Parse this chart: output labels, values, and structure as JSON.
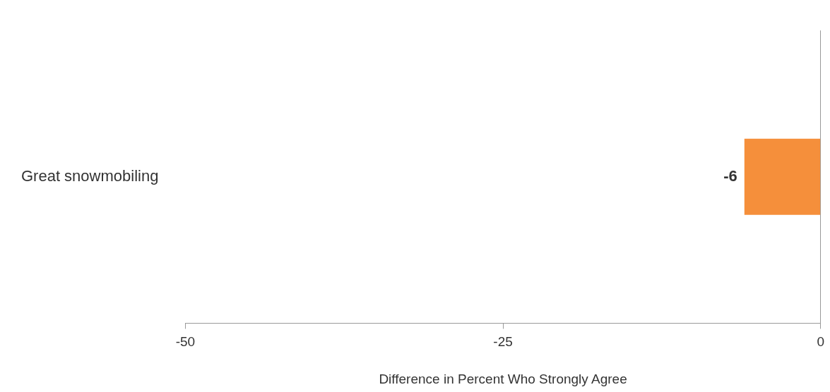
{
  "chart_data": {
    "type": "bar",
    "orientation": "horizontal",
    "xlabel": "Difference in Percent Who Strongly Agree",
    "categories": [
      "Great snowmobiling"
    ],
    "values": [
      -6
    ],
    "color": "#f58f3b",
    "xlim": [
      -50,
      0
    ],
    "xticks": [
      -50,
      -25,
      0
    ],
    "data_labels": true,
    "grid": false,
    "legend": false
  }
}
